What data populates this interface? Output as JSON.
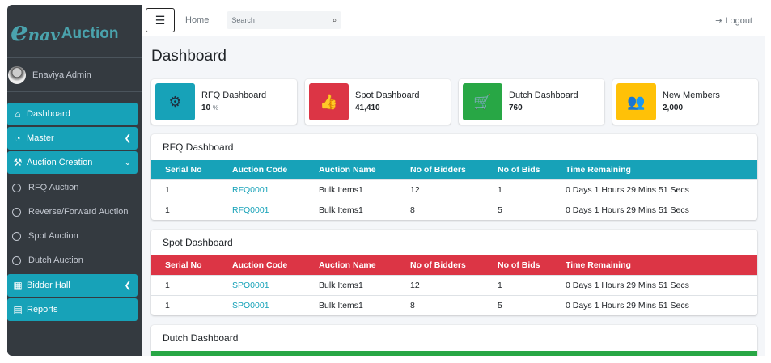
{
  "brand": {
    "logo_text": "EnavAuction"
  },
  "user": {
    "name": "Enaviya Admin"
  },
  "sidebar": {
    "items": [
      {
        "label": "Dashboard",
        "icon": "home-icon"
      },
      {
        "label": "Master",
        "icon": "tachometer-icon"
      },
      {
        "label": "Auction Creation",
        "icon": "gavel-icon"
      },
      {
        "label": "RFQ Auction"
      },
      {
        "label": "Reverse/Forward Auction"
      },
      {
        "label": "Spot Auction"
      },
      {
        "label": "Dutch Auction"
      },
      {
        "label": "Bidder Hall",
        "icon": "building-icon"
      },
      {
        "label": "Reports",
        "icon": "file-pdf-icon"
      }
    ]
  },
  "topbar": {
    "home": "Home",
    "search_placeholder": "Search",
    "logout": "Logout"
  },
  "page_title": "Dashboard",
  "cards": [
    {
      "title": "RFQ Dashboard",
      "value": "10",
      "unit": "%",
      "color": "#17a2b8",
      "icon": "gear-icon"
    },
    {
      "title": "Spot Dashboard",
      "value": "41,410",
      "color": "#dc3545",
      "icon": "thumbs-up-icon"
    },
    {
      "title": "Dutch Dashboard",
      "value": "760",
      "color": "#28a745",
      "icon": "cart-icon"
    },
    {
      "title": "New Members",
      "value": "2,000",
      "color": "#ffc107",
      "icon": "users-icon"
    }
  ],
  "columns": [
    "Serial No",
    "Auction Code",
    "Auction Name",
    "No of Bidders",
    "No of Bids",
    "Time Remaining"
  ],
  "rfq": {
    "title": "RFQ Dashboard",
    "color": "#17a2b8",
    "rows": [
      [
        "1",
        "RFQ0001",
        "Bulk Items1",
        "12",
        "1",
        "0 Days 1 Hours 29 Mins 51 Secs"
      ],
      [
        "1",
        "RFQ0001",
        "Bulk Items1",
        "8",
        "5",
        "0 Days 1 Hours 29 Mins 51 Secs"
      ]
    ]
  },
  "spot": {
    "title": "Spot Dashboard",
    "color": "#dc3545",
    "rows": [
      [
        "1",
        "SPO0001",
        "Bulk Items1",
        "12",
        "1",
        "0 Days 1 Hours 29 Mins 51 Secs"
      ],
      [
        "1",
        "SPO0001",
        "Bulk Items1",
        "8",
        "5",
        "0 Days 1 Hours 29 Mins 51 Secs"
      ]
    ]
  },
  "dutch": {
    "title": "Dutch Dashboard",
    "color": "#28a745"
  }
}
